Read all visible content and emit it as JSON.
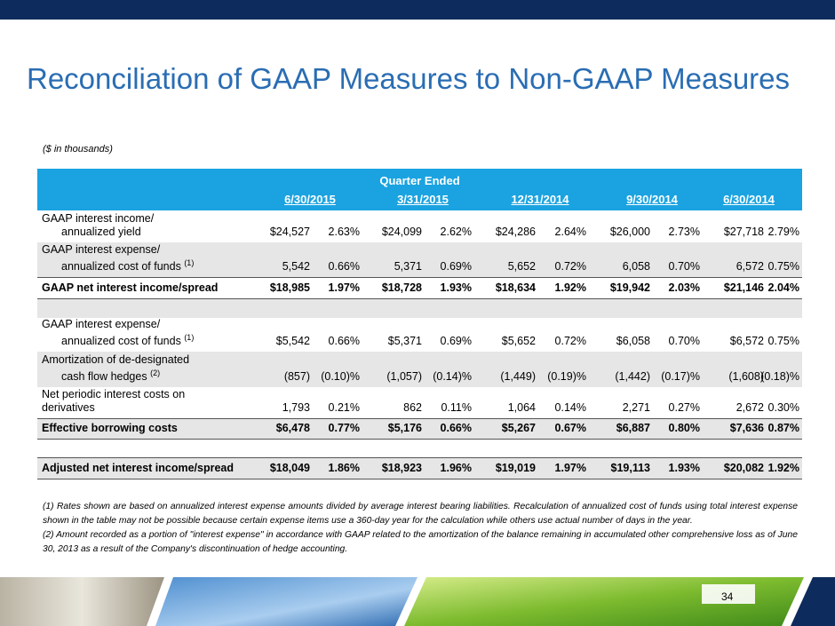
{
  "title": "Reconciliation of GAAP Measures to Non-GAAP Measures",
  "units_note": "($ in thousands)",
  "table": {
    "group_header": "Quarter Ended",
    "columns": [
      "6/30/2015",
      "3/31/2015",
      "12/31/2014",
      "9/30/2014",
      "6/30/2014"
    ],
    "rows": [
      {
        "label": [
          "GAAP interest income/",
          "annualized yield"
        ],
        "cells": [
          "$24,527",
          "2.63%",
          "$24,099",
          "2.62%",
          "$24,286",
          "2.64%",
          "$26,000",
          "2.73%",
          "$27,718",
          "2.79%"
        ]
      },
      {
        "label": [
          "GAAP interest expense/",
          "annualized cost of funds"
        ],
        "note": "(1)",
        "cells": [
          "5,542",
          "0.66%",
          "5,371",
          "0.69%",
          "5,652",
          "0.72%",
          "6,058",
          "0.70%",
          "6,572",
          "0.75%"
        ]
      },
      {
        "label": [
          "GAAP net interest income/spread"
        ],
        "cells": [
          "$18,985",
          "1.97%",
          "$18,728",
          "1.93%",
          "$18,634",
          "1.92%",
          "$19,942",
          "2.03%",
          "$21,146",
          "2.04%"
        ]
      },
      {
        "label": [
          "GAAP interest expense/",
          "annualized cost of funds"
        ],
        "note": "(1)",
        "cells": [
          "$5,542",
          "0.66%",
          "$5,371",
          "0.69%",
          "$5,652",
          "0.72%",
          "$6,058",
          "0.70%",
          "$6,572",
          "0.75%"
        ]
      },
      {
        "label": [
          "Amortization of de-designated",
          "cash flow hedges"
        ],
        "note": "(2)",
        "cells": [
          "(857)",
          "(0.10)%",
          "(1,057)",
          "(0.14)%",
          "(1,449)",
          "(0.19)%",
          "(1,442)",
          "(0.17)%",
          "(1,608)",
          "(0.18)%"
        ]
      },
      {
        "label": [
          "Net periodic interest costs on",
          "derivatives"
        ],
        "cells": [
          "1,793",
          "0.21%",
          "862",
          "0.11%",
          "1,064",
          "0.14%",
          "2,271",
          "0.27%",
          "2,672",
          "0.30%"
        ]
      },
      {
        "label": [
          "Effective borrowing costs"
        ],
        "cells": [
          "$6,478",
          "0.77%",
          "$5,176",
          "0.66%",
          "$5,267",
          "0.67%",
          "$6,887",
          "0.80%",
          "$7,636",
          "0.87%"
        ]
      },
      {
        "label": [
          "Adjusted net interest income/spread"
        ],
        "cells": [
          "$18,049",
          "1.86%",
          "$18,923",
          "1.96%",
          "$19,019",
          "1.97%",
          "$19,113",
          "1.93%",
          "$20,082",
          "1.92%"
        ]
      }
    ]
  },
  "footnotes": [
    "(1) Rates shown are based on annualized interest expense amounts divided by average interest bearing liabilities. Recalculation of annualized cost of funds using total interest expense shown in the table may not be possible because certain expense items use a 360-day year for the calculation while others use actual number of days in the year.",
    "(2)  Amount recorded as a portion of \"interest expense\" in accordance with GAAP related to the amortization of the balance remaining in accumulated other comprehensive loss as of June 30, 2013 as a result of the Company's discontinuation of hedge accounting."
  ],
  "page_number": "34"
}
